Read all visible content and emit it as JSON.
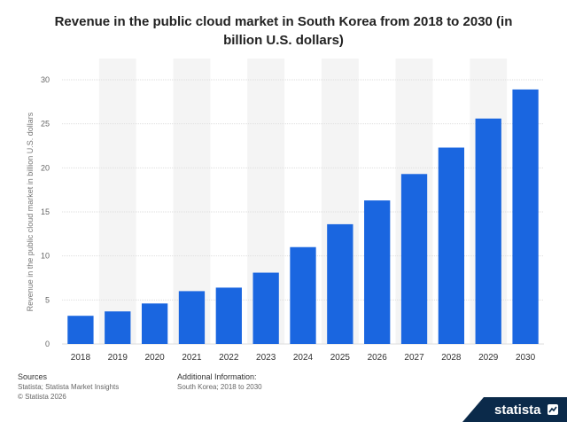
{
  "chart_data": {
    "type": "bar",
    "title": "Revenue in the public cloud market in South Korea from 2018 to 2030 (in billion U.S. dollars)",
    "ylabel": "Revenue in the public cloud market in billion U.S. dollars",
    "xlabel": "",
    "ylim": [
      0,
      30
    ],
    "yticks": [
      0,
      5,
      10,
      15,
      20,
      25,
      30
    ],
    "categories": [
      "2018",
      "2019",
      "2020",
      "2021",
      "2022",
      "2023",
      "2024",
      "2025",
      "2026",
      "2027",
      "2028",
      "2029",
      "2030"
    ],
    "values": [
      3.2,
      3.7,
      4.6,
      6.0,
      6.4,
      8.1,
      11.0,
      13.6,
      16.3,
      19.3,
      22.3,
      25.6,
      28.9
    ],
    "bar_color": "#1a66e0",
    "grid": true
  },
  "footer": {
    "sources_heading": "Sources",
    "sources_line1": "Statista; Statista Market Insights",
    "sources_line2": "© Statista 2026",
    "info_heading": "Additional Information:",
    "info_line1": "South Korea; 2018 to 2030"
  },
  "brand": {
    "name": "statista",
    "icon": "statista-logo-icon",
    "color": "#0b2a4a"
  }
}
